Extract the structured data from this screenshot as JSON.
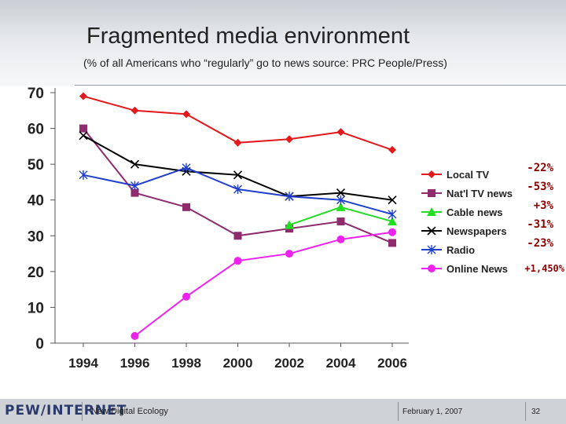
{
  "header": {
    "title": "Fragmented media environment",
    "subtitle": "(% of all Americans who “regularly” go to news source: PRC People/Press)"
  },
  "footer": {
    "logo": "PEW/INTERNET",
    "left_text": "New Digital Ecology",
    "date": "February 1, 2007",
    "page": "32"
  },
  "chart_data": {
    "type": "line",
    "title": "Fragmented media environment",
    "xlabel": "",
    "ylabel": "",
    "x": [
      1994,
      1996,
      1998,
      2000,
      2002,
      2004,
      2006
    ],
    "x_ticks": [
      "1994",
      "1996",
      "1998",
      "2000",
      "2002",
      "2004",
      "2006"
    ],
    "y_ticks": [
      "0",
      "10",
      "20",
      "30",
      "40",
      "50",
      "60",
      "70"
    ],
    "ylim": [
      0,
      70
    ],
    "grid": false,
    "legend_position": "right",
    "series": [
      {
        "name": "Local TV",
        "color": "#e31a1c",
        "marker": "diamond",
        "change": "-22%",
        "values": [
          69,
          65,
          64,
          56,
          57,
          59,
          54
        ]
      },
      {
        "name": "Nat'l TV news",
        "color": "#8e2c6e",
        "marker": "square",
        "change": "-53%",
        "values": [
          60,
          42,
          38,
          30,
          32,
          34,
          28
        ]
      },
      {
        "name": "Cable news",
        "color": "#22dd22",
        "marker": "triangle",
        "change": "+3%",
        "values": [
          null,
          null,
          null,
          null,
          33,
          38,
          34
        ]
      },
      {
        "name": "Newspapers",
        "color": "#000000",
        "marker": "x",
        "change": "-31%",
        "values": [
          58,
          50,
          48,
          47,
          41,
          42,
          40
        ]
      },
      {
        "name": "Radio",
        "color": "#1f3fcc",
        "marker": "star",
        "change": "-23%",
        "values": [
          47,
          44,
          49,
          43,
          41,
          40,
          36
        ]
      },
      {
        "name": "Online News",
        "color": "#ee22ee",
        "marker": "circle",
        "change": "+1,450%",
        "values": [
          null,
          2,
          13,
          23,
          25,
          29,
          31
        ]
      }
    ]
  }
}
